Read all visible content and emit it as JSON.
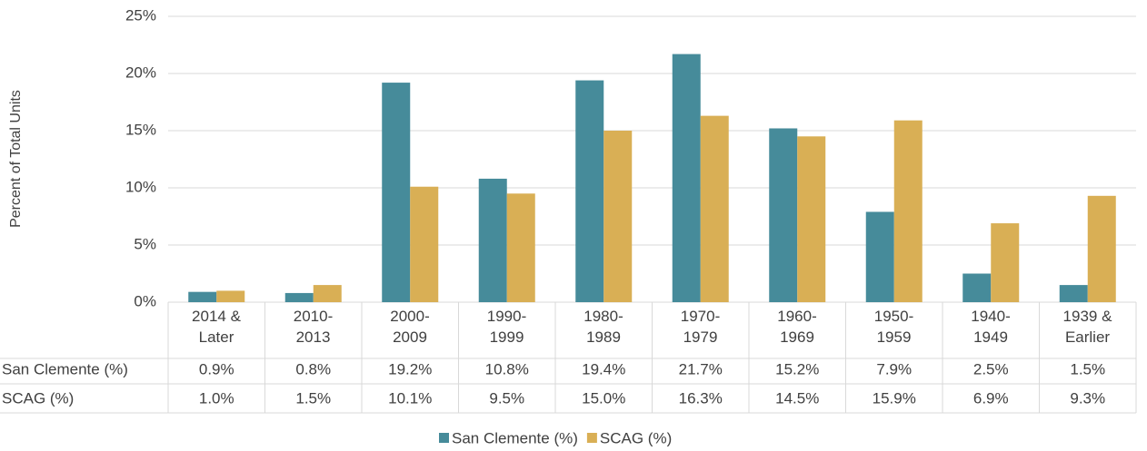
{
  "chart_data": {
    "type": "bar",
    "y_axis_label": "Percent of Total Units",
    "categories": [
      "2014 &\nLater",
      "2010-\n2013",
      "2000-\n2009",
      "1990-\n1999",
      "1980-\n1989",
      "1970-\n1979",
      "1960-\n1969",
      "1950-\n1959",
      "1940-\n1949",
      "1939 &\nEarlier"
    ],
    "series": [
      {
        "name": "San Clemente (%)",
        "color": "#468b9a",
        "values": [
          0.9,
          0.8,
          19.2,
          10.8,
          19.4,
          21.7,
          15.2,
          7.9,
          2.5,
          1.5
        ],
        "value_labels": [
          "0.9%",
          "0.8%",
          "19.2%",
          "10.8%",
          "19.4%",
          "21.7%",
          "15.2%",
          "7.9%",
          "2.5%",
          "1.5%"
        ]
      },
      {
        "name": "SCAG (%)",
        "color": "#d9af55",
        "values": [
          1.0,
          1.5,
          10.1,
          9.5,
          15.0,
          16.3,
          14.5,
          15.9,
          6.9,
          9.3
        ],
        "value_labels": [
          "1.0%",
          "1.5%",
          "10.1%",
          "9.5%",
          "15.0%",
          "16.3%",
          "14.5%",
          "15.9%",
          "6.9%",
          "9.3%"
        ]
      }
    ],
    "ylim": [
      0,
      25
    ],
    "yticks": [
      {
        "value": 0,
        "label": "0%"
      },
      {
        "value": 5,
        "label": "5%"
      },
      {
        "value": 10,
        "label": "10%"
      },
      {
        "value": 15,
        "label": "15%"
      },
      {
        "value": 20,
        "label": "20%"
      },
      {
        "value": 25,
        "label": "25%"
      }
    ],
    "grid": true,
    "legend": "bottom"
  }
}
